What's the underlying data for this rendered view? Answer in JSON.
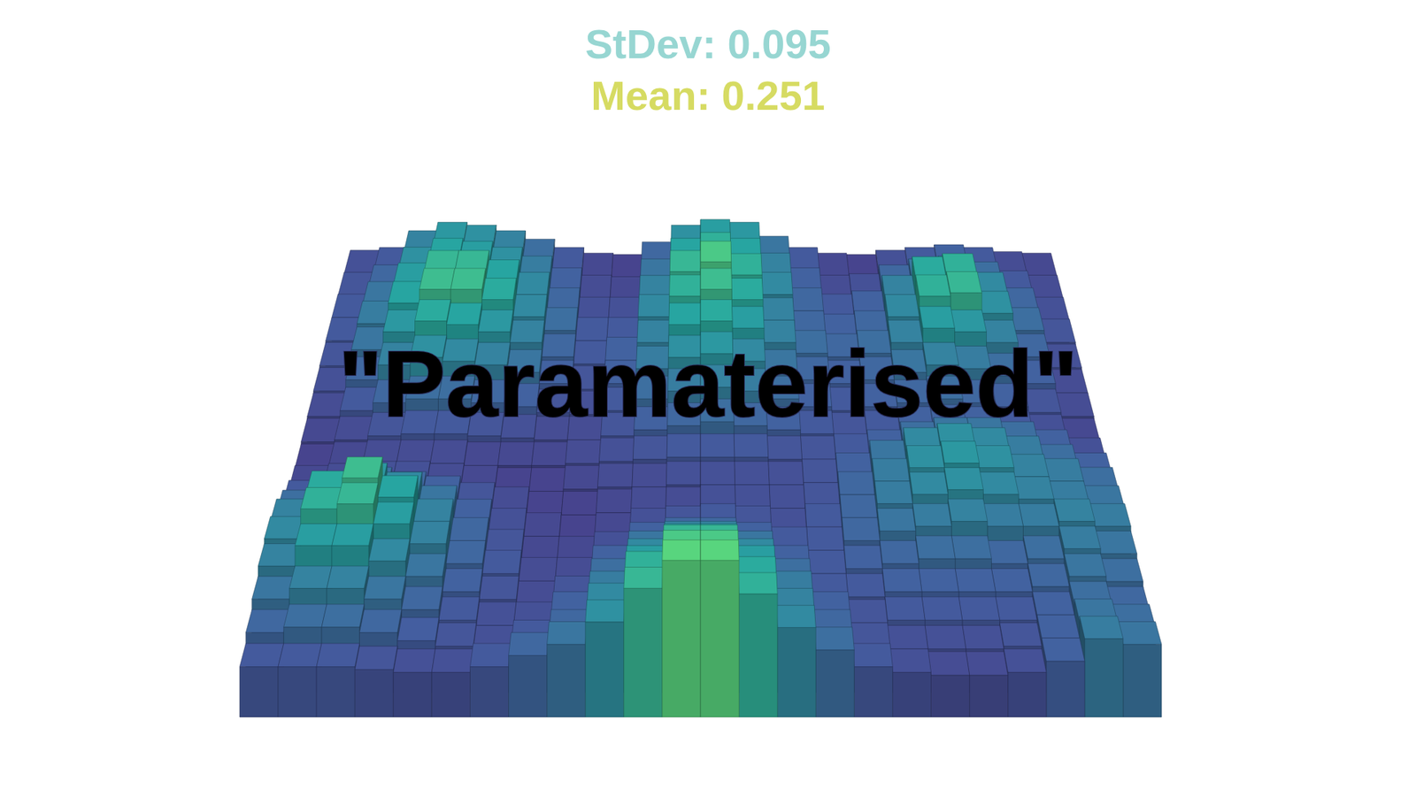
{
  "chart_data": {
    "type": "bar3d",
    "title": "StDev: 0.095",
    "subtitle": "Mean: 0.251",
    "annotations": [
      "\"Paramaterised\""
    ],
    "tick_labels": false,
    "cells": [
      [
        0.16,
        0.18,
        0.3,
        0.36,
        0.34,
        0.3,
        0.24,
        0.18,
        0.14,
        0.13,
        0.22,
        0.34,
        0.38,
        0.36,
        0.26,
        0.18,
        0.14,
        0.13,
        0.16,
        0.18,
        0.2,
        0.18,
        0.15,
        0.14
      ],
      [
        0.17,
        0.22,
        0.34,
        0.4,
        0.38,
        0.34,
        0.28,
        0.2,
        0.15,
        0.14,
        0.26,
        0.4,
        0.44,
        0.4,
        0.3,
        0.2,
        0.15,
        0.16,
        0.22,
        0.26,
        0.28,
        0.24,
        0.18,
        0.15
      ],
      [
        0.18,
        0.26,
        0.38,
        0.46,
        0.46,
        0.4,
        0.32,
        0.22,
        0.16,
        0.16,
        0.3,
        0.46,
        0.52,
        0.44,
        0.32,
        0.22,
        0.18,
        0.2,
        0.3,
        0.42,
        0.44,
        0.32,
        0.22,
        0.16
      ],
      [
        0.18,
        0.28,
        0.4,
        0.48,
        0.48,
        0.42,
        0.32,
        0.24,
        0.18,
        0.18,
        0.32,
        0.44,
        0.48,
        0.42,
        0.3,
        0.22,
        0.2,
        0.22,
        0.32,
        0.44,
        0.46,
        0.34,
        0.24,
        0.17
      ],
      [
        0.17,
        0.26,
        0.36,
        0.42,
        0.4,
        0.36,
        0.3,
        0.22,
        0.18,
        0.2,
        0.3,
        0.4,
        0.42,
        0.38,
        0.3,
        0.24,
        0.22,
        0.24,
        0.3,
        0.38,
        0.36,
        0.3,
        0.22,
        0.16
      ],
      [
        0.16,
        0.22,
        0.3,
        0.34,
        0.32,
        0.3,
        0.26,
        0.2,
        0.17,
        0.2,
        0.28,
        0.34,
        0.36,
        0.32,
        0.26,
        0.22,
        0.2,
        0.22,
        0.26,
        0.3,
        0.28,
        0.24,
        0.2,
        0.15
      ],
      [
        0.15,
        0.18,
        0.22,
        0.24,
        0.24,
        0.22,
        0.2,
        0.17,
        0.16,
        0.18,
        0.24,
        0.28,
        0.3,
        0.28,
        0.24,
        0.2,
        0.18,
        0.2,
        0.22,
        0.24,
        0.22,
        0.2,
        0.17,
        0.15
      ],
      [
        0.14,
        0.15,
        0.17,
        0.18,
        0.18,
        0.17,
        0.16,
        0.15,
        0.15,
        0.17,
        0.2,
        0.22,
        0.24,
        0.22,
        0.2,
        0.18,
        0.17,
        0.18,
        0.2,
        0.21,
        0.2,
        0.18,
        0.16,
        0.14
      ],
      [
        0.13,
        0.14,
        0.15,
        0.15,
        0.15,
        0.14,
        0.14,
        0.14,
        0.15,
        0.16,
        0.17,
        0.18,
        0.18,
        0.18,
        0.17,
        0.17,
        0.18,
        0.2,
        0.24,
        0.26,
        0.26,
        0.24,
        0.2,
        0.16
      ],
      [
        0.14,
        0.15,
        0.16,
        0.16,
        0.15,
        0.14,
        0.13,
        0.13,
        0.14,
        0.15,
        0.15,
        0.16,
        0.16,
        0.16,
        0.16,
        0.17,
        0.2,
        0.26,
        0.32,
        0.34,
        0.32,
        0.28,
        0.24,
        0.2
      ],
      [
        0.18,
        0.22,
        0.24,
        0.22,
        0.2,
        0.17,
        0.15,
        0.13,
        0.13,
        0.14,
        0.15,
        0.15,
        0.16,
        0.16,
        0.16,
        0.17,
        0.22,
        0.28,
        0.34,
        0.36,
        0.34,
        0.3,
        0.28,
        0.24
      ],
      [
        0.24,
        0.32,
        0.36,
        0.32,
        0.26,
        0.2,
        0.16,
        0.14,
        0.13,
        0.14,
        0.16,
        0.17,
        0.18,
        0.17,
        0.16,
        0.18,
        0.22,
        0.28,
        0.32,
        0.34,
        0.32,
        0.3,
        0.28,
        0.26
      ],
      [
        0.3,
        0.42,
        0.48,
        0.4,
        0.3,
        0.22,
        0.17,
        0.14,
        0.14,
        0.16,
        0.2,
        0.22,
        0.22,
        0.2,
        0.18,
        0.18,
        0.22,
        0.26,
        0.28,
        0.3,
        0.28,
        0.28,
        0.3,
        0.28
      ],
      [
        0.32,
        0.44,
        0.46,
        0.38,
        0.3,
        0.22,
        0.18,
        0.15,
        0.15,
        0.2,
        0.26,
        0.3,
        0.3,
        0.26,
        0.2,
        0.18,
        0.2,
        0.22,
        0.24,
        0.24,
        0.22,
        0.24,
        0.28,
        0.26
      ],
      [
        0.3,
        0.38,
        0.38,
        0.32,
        0.26,
        0.2,
        0.17,
        0.15,
        0.17,
        0.24,
        0.32,
        0.38,
        0.38,
        0.32,
        0.24,
        0.18,
        0.18,
        0.2,
        0.2,
        0.2,
        0.2,
        0.22,
        0.26,
        0.24
      ],
      [
        0.26,
        0.3,
        0.3,
        0.26,
        0.22,
        0.18,
        0.16,
        0.16,
        0.2,
        0.28,
        0.38,
        0.46,
        0.46,
        0.38,
        0.28,
        0.2,
        0.17,
        0.18,
        0.18,
        0.18,
        0.18,
        0.2,
        0.24,
        0.22
      ],
      [
        0.22,
        0.24,
        0.24,
        0.22,
        0.19,
        0.17,
        0.16,
        0.18,
        0.22,
        0.32,
        0.44,
        0.52,
        0.52,
        0.42,
        0.3,
        0.22,
        0.17,
        0.16,
        0.16,
        0.16,
        0.17,
        0.2,
        0.26,
        0.24
      ],
      [
        0.18,
        0.18,
        0.18,
        0.17,
        0.16,
        0.16,
        0.18,
        0.22,
        0.26,
        0.34,
        0.46,
        0.56,
        0.56,
        0.44,
        0.32,
        0.24,
        0.18,
        0.16,
        0.15,
        0.15,
        0.16,
        0.2,
        0.28,
        0.26
      ]
    ]
  }
}
